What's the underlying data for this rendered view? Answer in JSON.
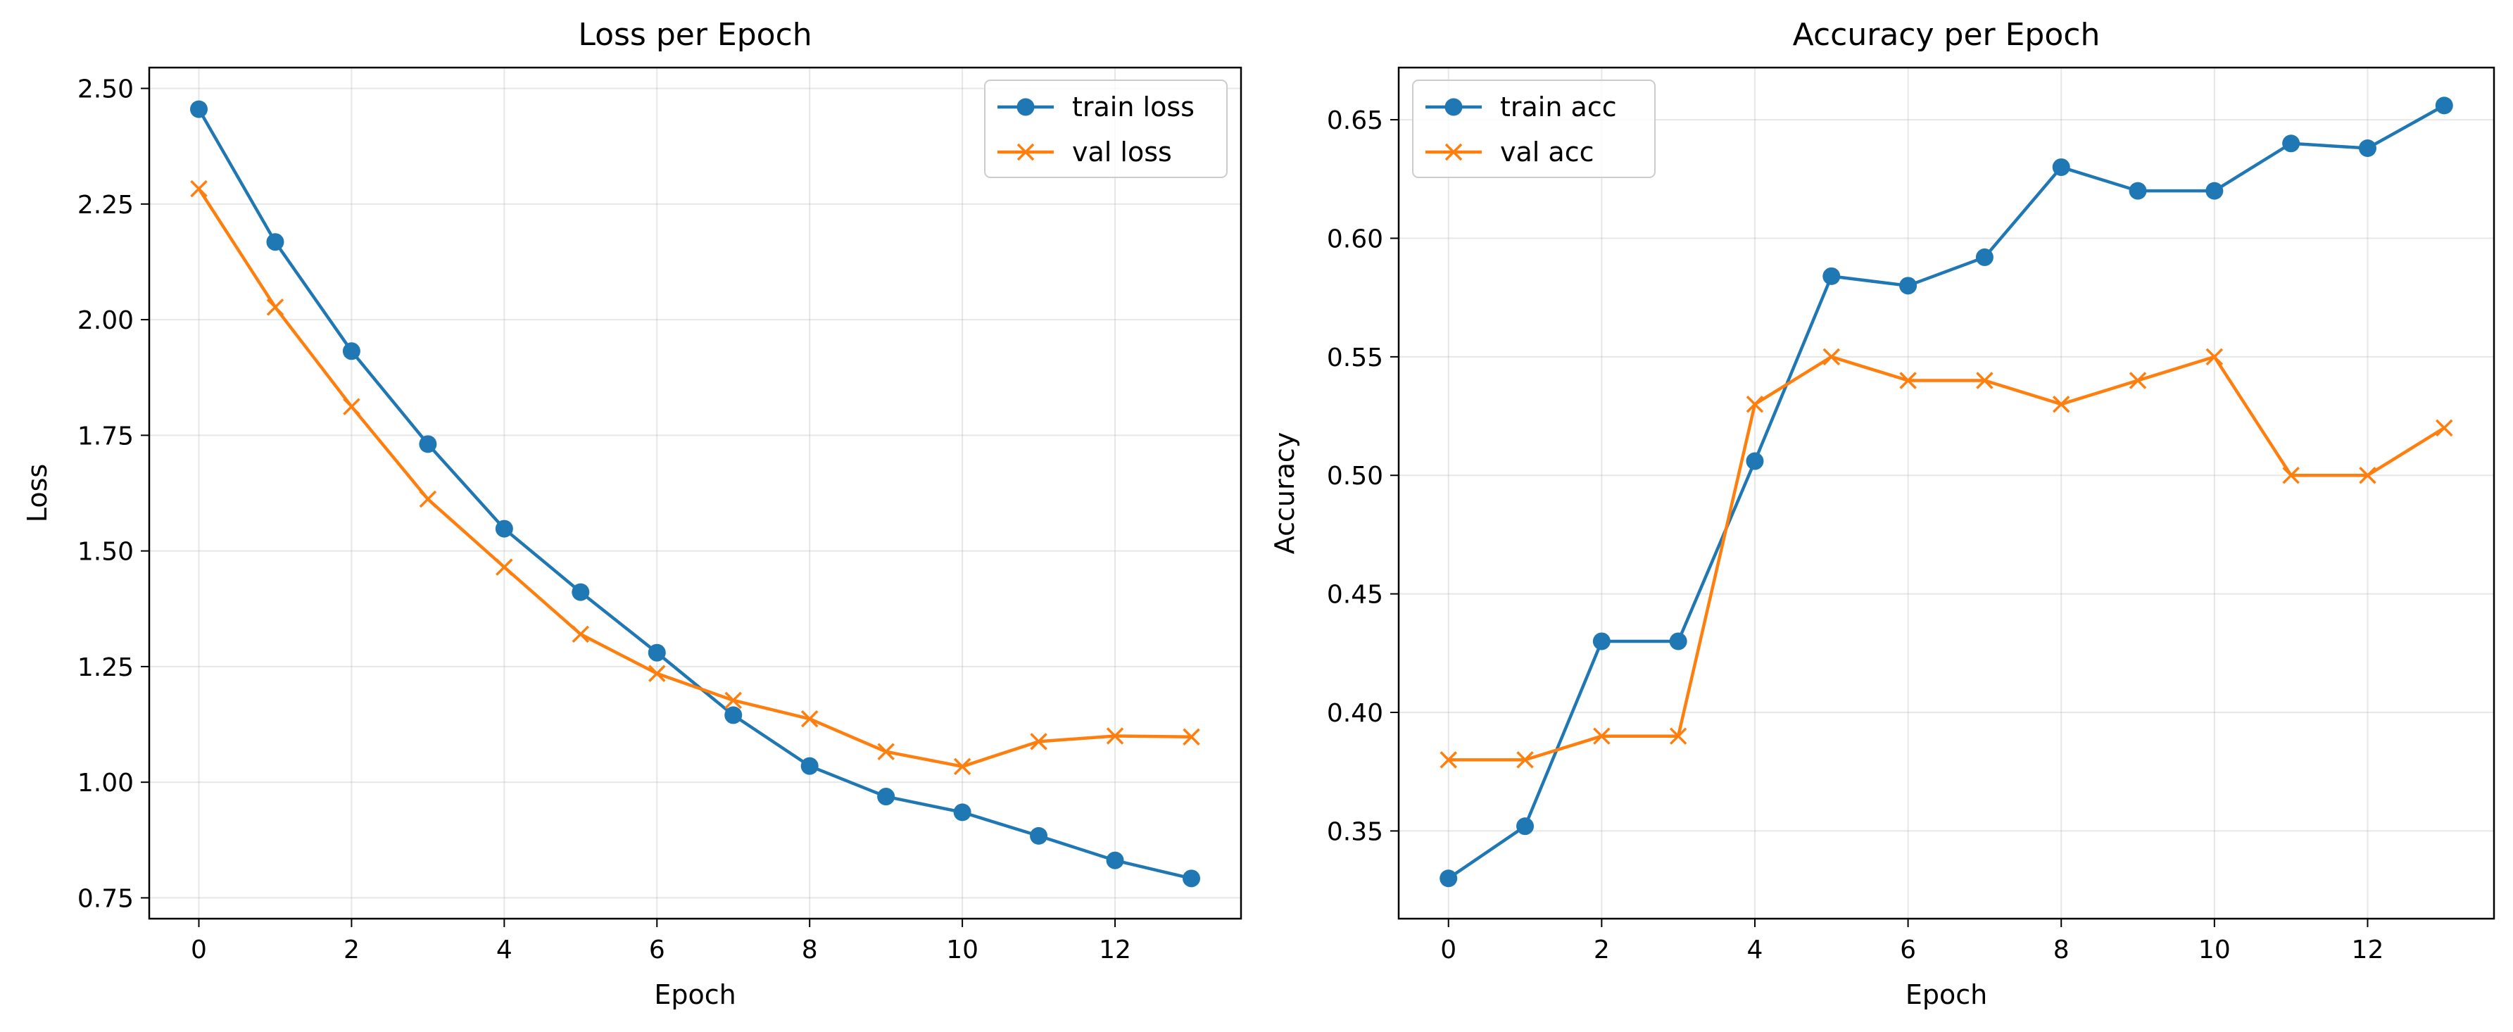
{
  "chart_data": [
    {
      "type": "line",
      "title": "Loss per Epoch",
      "xlabel": "Epoch",
      "ylabel": "Loss",
      "xlim": [
        -0.65,
        13.65
      ],
      "ylim": [
        0.705,
        2.545
      ],
      "xticks": [
        0,
        2,
        4,
        6,
        8,
        10,
        12
      ],
      "yticks": [
        0.75,
        1.0,
        1.25,
        1.5,
        1.75,
        2.0,
        2.25,
        2.5
      ],
      "ytick_labels": [
        "0.75",
        "1.00",
        "1.25",
        "1.50",
        "1.75",
        "2.00",
        "2.25",
        "2.50"
      ],
      "grid": true,
      "legend": "upper right",
      "x": [
        0,
        1,
        2,
        3,
        4,
        5,
        6,
        7,
        8,
        9,
        10,
        11,
        12,
        13
      ],
      "series": [
        {
          "name": "train loss",
          "color": "#1f77b4",
          "marker": "circle",
          "values": [
            2.455,
            2.168,
            1.932,
            1.731,
            1.548,
            1.411,
            1.28,
            1.145,
            1.035,
            0.969,
            0.935,
            0.884,
            0.831,
            0.792
          ]
        },
        {
          "name": "val loss",
          "color": "#ff7f0e",
          "marker": "x",
          "values": [
            2.283,
            2.027,
            1.812,
            1.612,
            1.465,
            1.32,
            1.235,
            1.177,
            1.137,
            1.066,
            1.034,
            1.088,
            1.1,
            1.098
          ]
        }
      ]
    },
    {
      "type": "line",
      "title": "Accuracy per Epoch",
      "xlabel": "Epoch",
      "ylabel": "Accuracy",
      "xlim": [
        -0.65,
        13.65
      ],
      "ylim": [
        0.313,
        0.672
      ],
      "xticks": [
        0,
        2,
        4,
        6,
        8,
        10,
        12
      ],
      "yticks": [
        0.35,
        0.4,
        0.45,
        0.5,
        0.55,
        0.6,
        0.65
      ],
      "ytick_labels": [
        "0.35",
        "0.40",
        "0.45",
        "0.50",
        "0.55",
        "0.60",
        "0.65"
      ],
      "grid": true,
      "legend": "upper left",
      "x": [
        0,
        1,
        2,
        3,
        4,
        5,
        6,
        7,
        8,
        9,
        10,
        11,
        12,
        13
      ],
      "series": [
        {
          "name": "train acc",
          "color": "#1f77b4",
          "marker": "circle",
          "values": [
            0.33,
            0.352,
            0.43,
            0.43,
            0.506,
            0.584,
            0.58,
            0.592,
            0.63,
            0.62,
            0.62,
            0.64,
            0.638,
            0.656
          ]
        },
        {
          "name": "val acc",
          "color": "#ff7f0e",
          "marker": "x",
          "values": [
            0.38,
            0.38,
            0.39,
            0.39,
            0.53,
            0.55,
            0.54,
            0.54,
            0.53,
            0.54,
            0.55,
            0.5,
            0.5,
            0.52
          ]
        }
      ]
    }
  ]
}
